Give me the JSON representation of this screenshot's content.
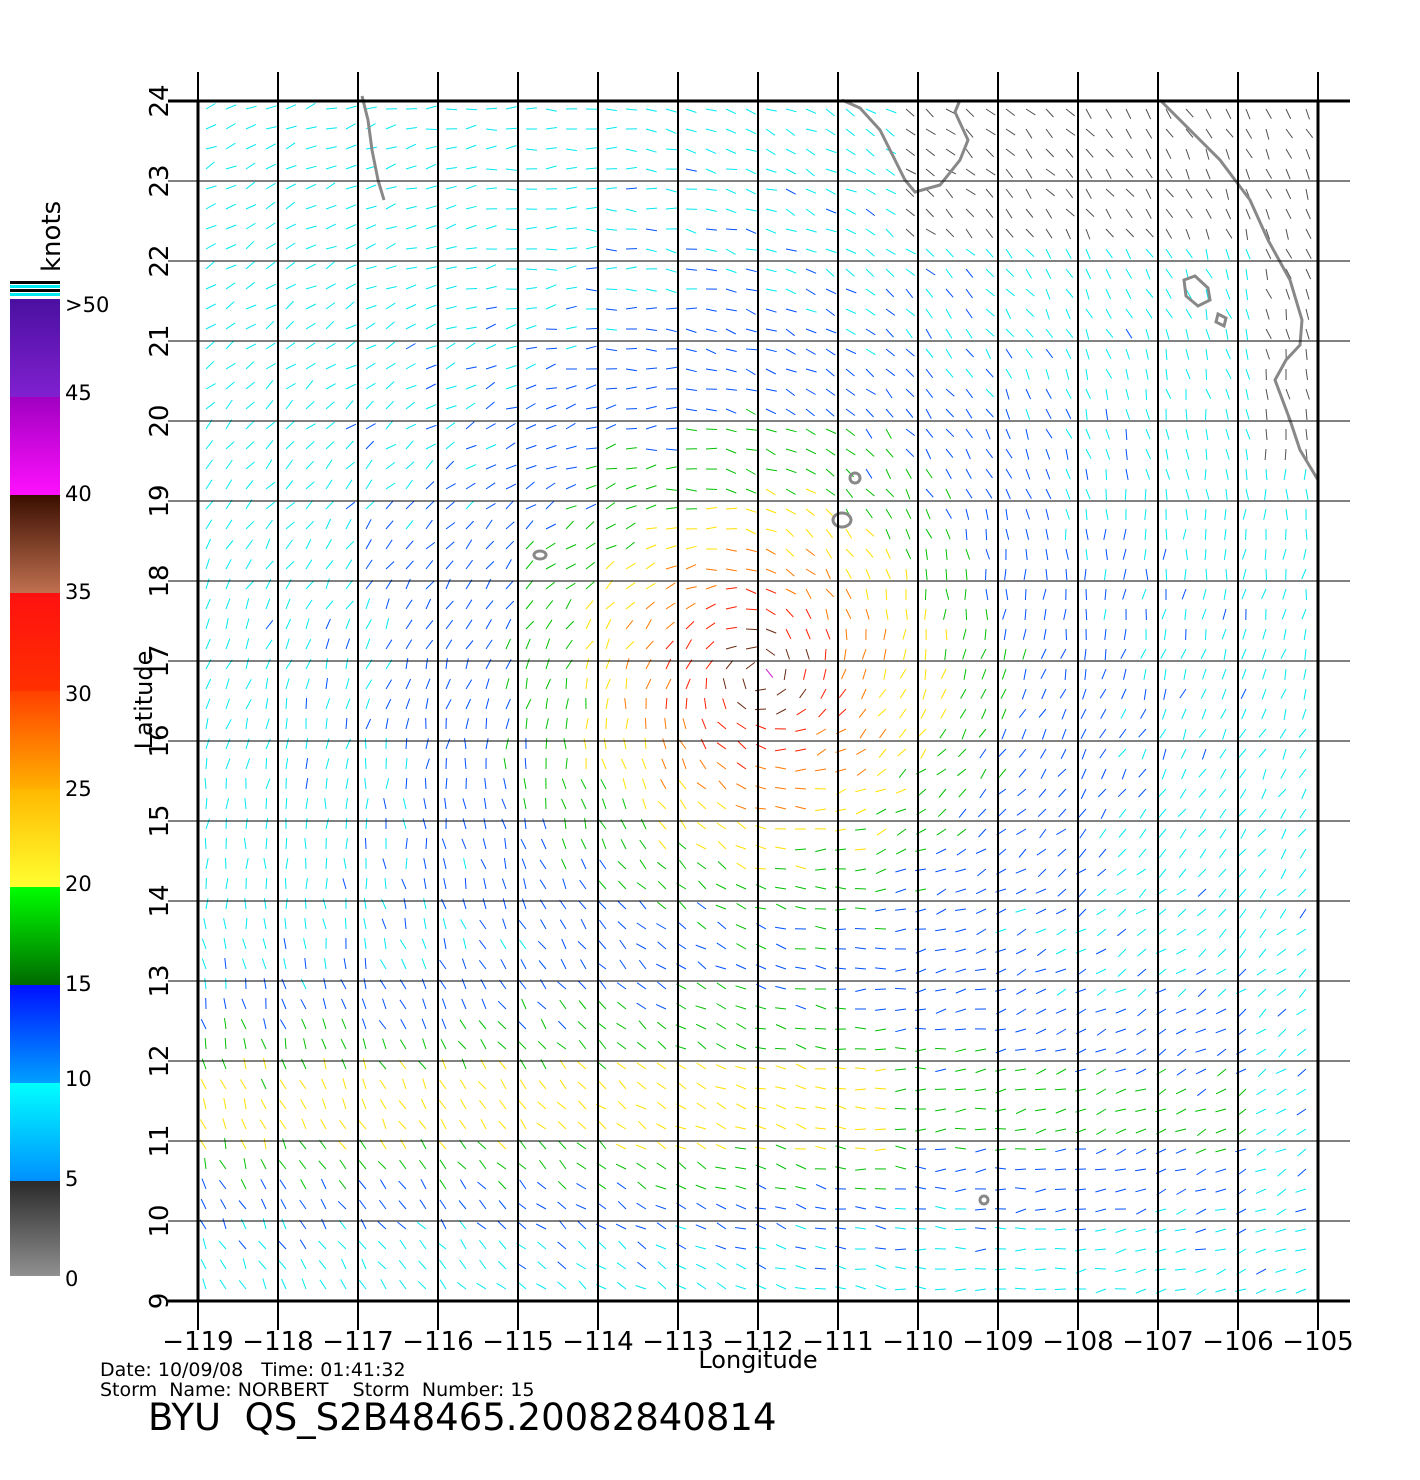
{
  "map": {
    "lon_ticks": [
      -119,
      -118,
      -117,
      -116,
      -115,
      -114,
      -113,
      -112,
      -111,
      -110,
      -109,
      -108,
      -107,
      -106,
      -105
    ],
    "lat_ticks": [
      9,
      10,
      11,
      12,
      13,
      14,
      15,
      16,
      17,
      18,
      19,
      20,
      21,
      22,
      23,
      24
    ],
    "lon_range": [
      -119,
      -105
    ],
    "lat_range": [
      9,
      24
    ],
    "xlabel": "Longitude",
    "ylabel": "Latitude",
    "grid": true,
    "storm_center": {
      "lon": -112.0,
      "lat": 16.8
    }
  },
  "legend": {
    "title": "knots",
    "labels": [
      "0",
      "5",
      "10",
      "15",
      "20",
      "25",
      "30",
      "35",
      "40",
      "45",
      ">50"
    ],
    "colors": {
      "0-5": "#505050",
      "5-10": "#00e8f0",
      "10-15": "#0050ff",
      "15-20": "#00c000",
      "20-25": "#ffe000",
      "25-30": "#ff7800",
      "30-35": "#ff1e00",
      "35-40": "#6a2a10",
      "40-45": "#d010d0",
      ">45": "#6010b0"
    }
  },
  "footer": {
    "line1": "Date: 10/09/08   Time: 01:41:32",
    "line2": "Storm  Name: NORBERT    Storm  Number: 15",
    "file_id": "BYU  QS_S2B48465.20082840814"
  }
}
